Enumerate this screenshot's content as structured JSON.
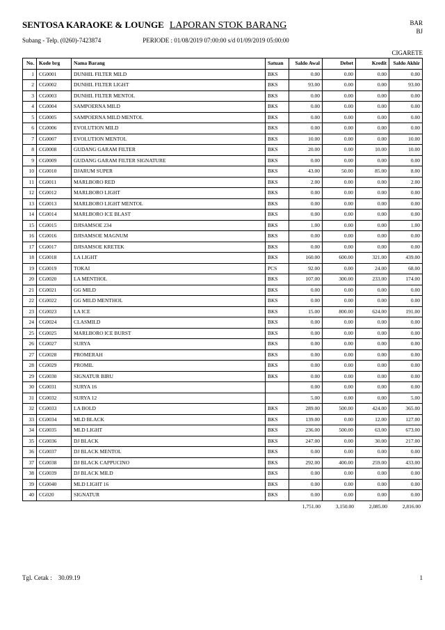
{
  "header": {
    "company": "SENTOSA KARAOKE & LOUNGE",
    "report_title": "LAPORAN  STOK BARANG",
    "right1": "BAR",
    "right2": "BJ",
    "branch": "Subang - Telp. (0260)-7423874",
    "period": "PERIODE : 01/08/2019 07:00:00 s/d 01/09/2019 05:00:00",
    "category": "CIGARETE"
  },
  "columns": {
    "no": "No.",
    "kode": "Kode brg",
    "nama": "Nama Barang",
    "satuan": "Satuan",
    "saldo_awal": "Saldo Awal",
    "debet": "Debet",
    "kredit": "Kredit",
    "saldo_akhir": "Saldo Akhir"
  },
  "rows": [
    {
      "no": "1",
      "kode": "CG0001",
      "nama": "DUNHIL FILTER MILD",
      "sat": "BKS",
      "awal": "0.00",
      "deb": "0.00",
      "kre": "0.00",
      "akh": "0.00"
    },
    {
      "no": "2",
      "kode": "CG0002",
      "nama": "DUNHIL FILTER LIGHT",
      "sat": "BKS",
      "awal": "93.00",
      "deb": "0.00",
      "kre": "0.00",
      "akh": "93.00"
    },
    {
      "no": "3",
      "kode": "CG0003",
      "nama": "DUNHIL FILTER MENTOL",
      "sat": "BKS",
      "awal": "0.00",
      "deb": "0.00",
      "kre": "0.00",
      "akh": "0.00"
    },
    {
      "no": "4",
      "kode": "CG0004",
      "nama": "SAMPOERNA MILD",
      "sat": "BKS",
      "awal": "0.00",
      "deb": "0.00",
      "kre": "0.00",
      "akh": "0.00"
    },
    {
      "no": "5",
      "kode": "CG0005",
      "nama": "SAMPOERNA MILD MENTOL",
      "sat": "BKS",
      "awal": "0.00",
      "deb": "0.00",
      "kre": "0.00",
      "akh": "0.00"
    },
    {
      "no": "6",
      "kode": "CG0006",
      "nama": "EVOLUTION MILD",
      "sat": "BKS",
      "awal": "0.00",
      "deb": "0.00",
      "kre": "0.00",
      "akh": "0.00"
    },
    {
      "no": "7",
      "kode": "CG0007",
      "nama": "EVOLUTION MENTOL",
      "sat": "BKS",
      "awal": "10.00",
      "deb": "0.00",
      "kre": "0.00",
      "akh": "10.00"
    },
    {
      "no": "8",
      "kode": "CG0008",
      "nama": "GUDANG GARAM FILTER",
      "sat": "BKS",
      "awal": "20.00",
      "deb": "0.00",
      "kre": "10.00",
      "akh": "10.00"
    },
    {
      "no": "9",
      "kode": "CG0009",
      "nama": "GUDANG GARAM FILTER SIGNATURE",
      "sat": "BKS",
      "awal": "0.00",
      "deb": "0.00",
      "kre": "0.00",
      "akh": "0.00"
    },
    {
      "no": "10",
      "kode": "CG0010",
      "nama": "DJARUM SUPER",
      "sat": "BKS",
      "awal": "43.00",
      "deb": "50.00",
      "kre": "85.00",
      "akh": "8.00"
    },
    {
      "no": "11",
      "kode": "CG0011",
      "nama": "MARLBORO RED",
      "sat": "BKS",
      "awal": "2.00",
      "deb": "0.00",
      "kre": "0.00",
      "akh": "2.00"
    },
    {
      "no": "12",
      "kode": "CG0012",
      "nama": "MARLBORO LIGHT",
      "sat": "BKS",
      "awal": "0.00",
      "deb": "0.00",
      "kre": "0.00",
      "akh": "0.00"
    },
    {
      "no": "13",
      "kode": "CG0013",
      "nama": "MARLBORO LIGHT MENTOL",
      "sat": "BKS",
      "awal": "0.00",
      "deb": "0.00",
      "kre": "0.00",
      "akh": "0.00"
    },
    {
      "no": "14",
      "kode": "CG0014",
      "nama": "MARLBORO ICE BLAST",
      "sat": "BKS",
      "awal": "0.00",
      "deb": "0.00",
      "kre": "0.00",
      "akh": "0.00"
    },
    {
      "no": "15",
      "kode": "CG0015",
      "nama": "DJISAMSOE 234",
      "sat": "BKS",
      "awal": "1.00",
      "deb": "0.00",
      "kre": "0.00",
      "akh": "1.00"
    },
    {
      "no": "16",
      "kode": "CG0016",
      "nama": "DJISAMSOE MAGNUM",
      "sat": "BKS",
      "awal": "0.00",
      "deb": "0.00",
      "kre": "0.00",
      "akh": "0.00"
    },
    {
      "no": "17",
      "kode": "CG0017",
      "nama": "DJISAMSOE KRETEK",
      "sat": "BKS",
      "awal": "0.00",
      "deb": "0.00",
      "kre": "0.00",
      "akh": "0.00"
    },
    {
      "no": "18",
      "kode": "CG0018",
      "nama": "LA LIGHT",
      "sat": "BKS",
      "awal": "160.00",
      "deb": "600.00",
      "kre": "321.00",
      "akh": "439.00"
    },
    {
      "no": "19",
      "kode": "CG0019",
      "nama": "TOKAI",
      "sat": "PCS",
      "awal": "92.00",
      "deb": "0.00",
      "kre": "24.00",
      "akh": "68.00"
    },
    {
      "no": "20",
      "kode": "CG0020",
      "nama": "LA MENTHOL",
      "sat": "BKS",
      "awal": "107.00",
      "deb": "300.00",
      "kre": "233.00",
      "akh": "174.00"
    },
    {
      "no": "21",
      "kode": "CG0021",
      "nama": "GG MILD",
      "sat": "BKS",
      "awal": "0.00",
      "deb": "0.00",
      "kre": "0.00",
      "akh": "0.00"
    },
    {
      "no": "22",
      "kode": "CG0022",
      "nama": "GG MILD MENTHOL",
      "sat": "BKS",
      "awal": "0.00",
      "deb": "0.00",
      "kre": "0.00",
      "akh": "0.00"
    },
    {
      "no": "23",
      "kode": "CG0023",
      "nama": "LA ICE",
      "sat": "BKS",
      "awal": "15.00",
      "deb": "800.00",
      "kre": "624.00",
      "akh": "191.00"
    },
    {
      "no": "24",
      "kode": "CG0024",
      "nama": "CLASMILD",
      "sat": "BKS",
      "awal": "0.00",
      "deb": "0.00",
      "kre": "0.00",
      "akh": "0.00"
    },
    {
      "no": "25",
      "kode": "CG0025",
      "nama": "MARLBORO ICE BURST",
      "sat": "BKS",
      "awal": "0.00",
      "deb": "0.00",
      "kre": "0.00",
      "akh": "0.00"
    },
    {
      "no": "26",
      "kode": "CG0027",
      "nama": "SURYA",
      "sat": "BKS",
      "awal": "0.00",
      "deb": "0.00",
      "kre": "0.00",
      "akh": "0.00"
    },
    {
      "no": "27",
      "kode": "CG0028",
      "nama": "PROMERAH",
      "sat": "BKS",
      "awal": "0.00",
      "deb": "0.00",
      "kre": "0.00",
      "akh": "0.00"
    },
    {
      "no": "28",
      "kode": "CG0029",
      "nama": "PROMIL",
      "sat": "BKS",
      "awal": "0.00",
      "deb": "0.00",
      "kre": "0.00",
      "akh": "0.00"
    },
    {
      "no": "29",
      "kode": "CG0030",
      "nama": "SIGNATUR BIRU",
      "sat": "BKS",
      "awal": "0.00",
      "deb": "0.00",
      "kre": "0.00",
      "akh": "0.00"
    },
    {
      "no": "30",
      "kode": "CG0031",
      "nama": "SURYA 16",
      "sat": "",
      "awal": "0.00",
      "deb": "0.00",
      "kre": "0.00",
      "akh": "0.00"
    },
    {
      "no": "31",
      "kode": "CG0032",
      "nama": "SURYA 12",
      "sat": "",
      "awal": "5.00",
      "deb": "0.00",
      "kre": "0.00",
      "akh": "5.00"
    },
    {
      "no": "32",
      "kode": "CG0033",
      "nama": "LA BOLD",
      "sat": "BKS",
      "awal": "289.00",
      "deb": "500.00",
      "kre": "424.00",
      "akh": "365.00"
    },
    {
      "no": "33",
      "kode": "CG0034",
      "nama": "MLD BLACK",
      "sat": "BKS",
      "awal": "139.00",
      "deb": "0.00",
      "kre": "12.00",
      "akh": "127.00"
    },
    {
      "no": "34",
      "kode": "CG0035",
      "nama": "MLD LIGHT",
      "sat": "BKS",
      "awal": "236.00",
      "deb": "500.00",
      "kre": "63.00",
      "akh": "673.00"
    },
    {
      "no": "35",
      "kode": "CG0036",
      "nama": "DJ BLACK",
      "sat": "BKS",
      "awal": "247.00",
      "deb": "0.00",
      "kre": "30.00",
      "akh": "217.00"
    },
    {
      "no": "36",
      "kode": "CG0037",
      "nama": "DJ BLACK MENTOL",
      "sat": "BKS",
      "awal": "0.00",
      "deb": "0.00",
      "kre": "0.00",
      "akh": "0.00"
    },
    {
      "no": "37",
      "kode": "CG0038",
      "nama": "DJ BLACK CAPPUCINO",
      "sat": "BKS",
      "awal": "292.00",
      "deb": "400.00",
      "kre": "259.00",
      "akh": "433.00"
    },
    {
      "no": "38",
      "kode": "CG0039",
      "nama": "DJ BLACK MILD",
      "sat": "BKS",
      "awal": "0.00",
      "deb": "0.00",
      "kre": "0.00",
      "akh": "0.00"
    },
    {
      "no": "39",
      "kode": "CG0040",
      "nama": "MLD LIGHT 16",
      "sat": "BKS",
      "awal": "0.00",
      "deb": "0.00",
      "kre": "0.00",
      "akh": "0.00"
    },
    {
      "no": "40",
      "kode": "CG020",
      "nama": "SIGNATUR",
      "sat": "BKS",
      "awal": "0.00",
      "deb": "0.00",
      "kre": "0.00",
      "akh": "0.00"
    }
  ],
  "totals": {
    "awal": "1,751.00",
    "deb": "3,150.00",
    "kre": "2,085.00",
    "akh": "2,816.00"
  },
  "footer": {
    "print_label": "Tgl. Cetak  :",
    "print_date": "30.09.19",
    "page": "1"
  }
}
